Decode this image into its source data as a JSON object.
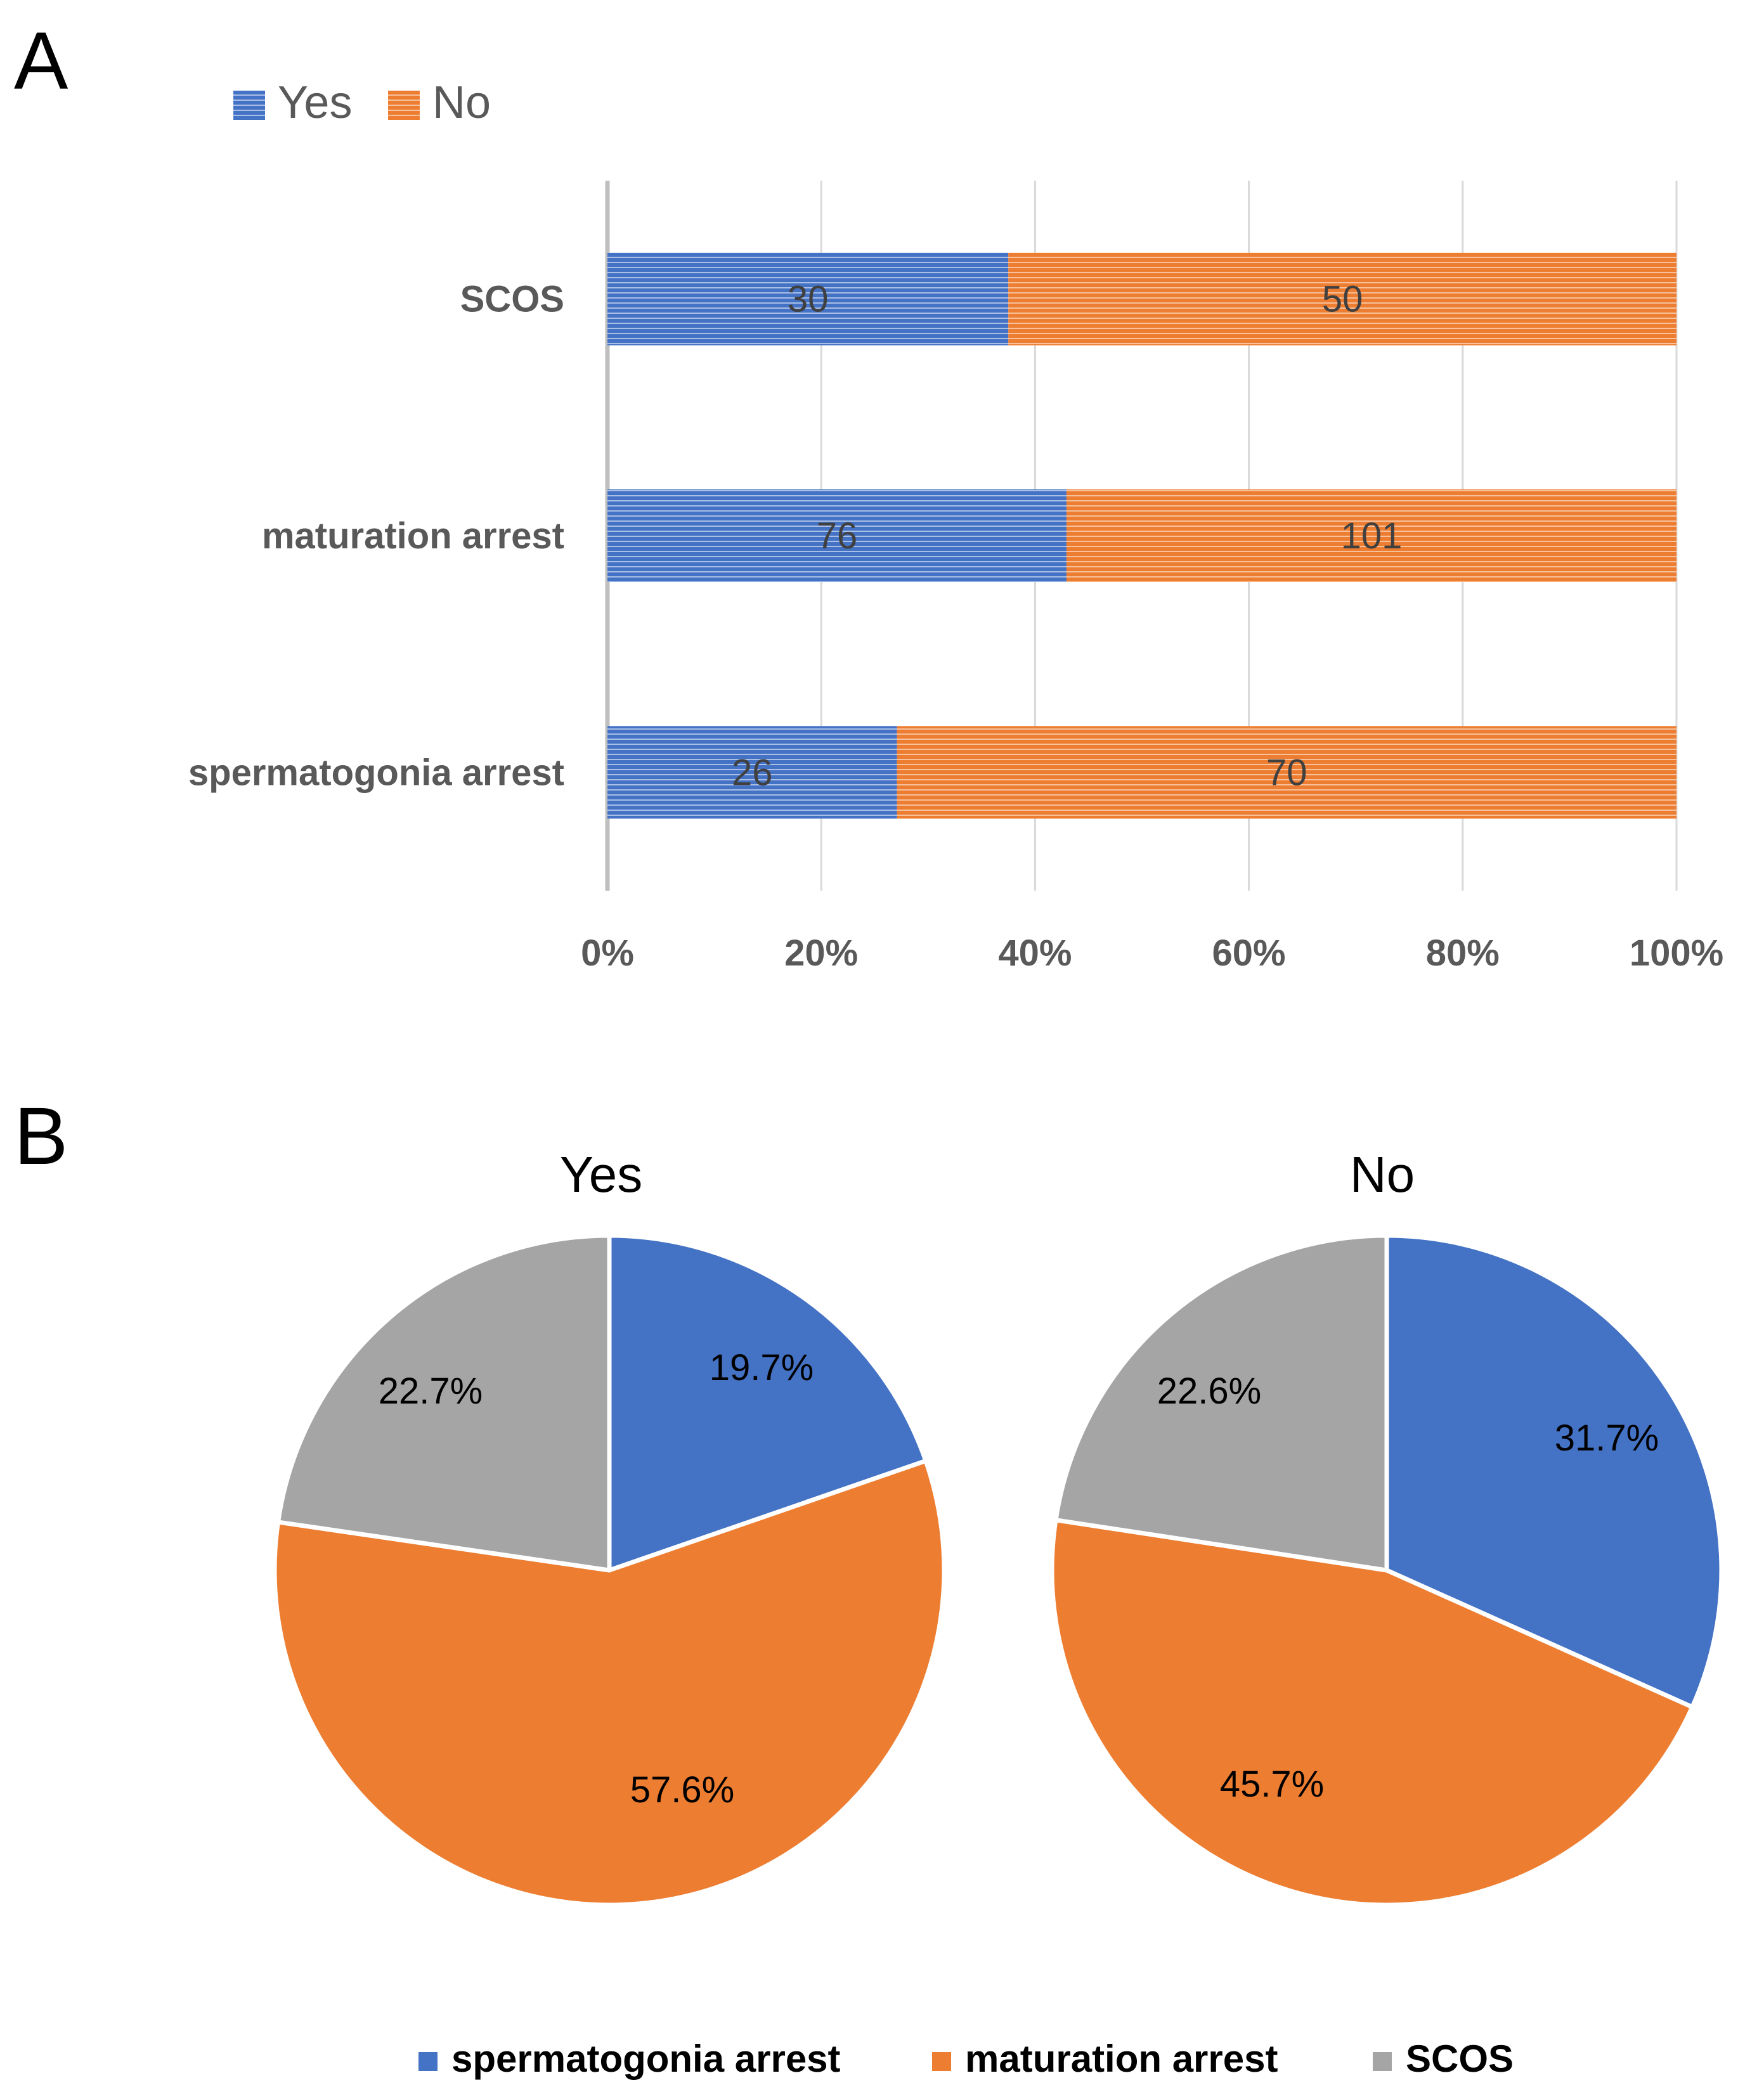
{
  "panels": {
    "a": "A",
    "b": "B"
  },
  "colors": {
    "yes": "#4472C4",
    "no": "#ED7D31",
    "scos": "#A5A5A5",
    "grid": "#D9D9D9",
    "axis": "#BFBFBF"
  },
  "chart_data": [
    {
      "type": "bar",
      "orientation": "horizontal",
      "stacked": "100%",
      "categories": [
        "SCOS",
        "maturation arrest",
        "spermatogonia arrest"
      ],
      "series": [
        {
          "name": "Yes",
          "color": "#4472C4",
          "values": [
            30,
            76,
            26
          ]
        },
        {
          "name": "No",
          "color": "#ED7D31",
          "values": [
            50,
            101,
            70
          ]
        }
      ],
      "x_ticks": [
        "0%",
        "20%",
        "40%",
        "60%",
        "80%",
        "100%"
      ],
      "xlim": [
        0,
        100
      ],
      "grid": true,
      "legend_position": "top-left"
    },
    {
      "type": "pie",
      "title": "Yes",
      "labels": [
        "spermatogonia arrest",
        "maturation arrest",
        "SCOS"
      ],
      "values": [
        19.7,
        57.6,
        22.7
      ],
      "value_labels": [
        "19.7%",
        "57.6%",
        "22.7%"
      ],
      "colors": [
        "#4472C4",
        "#ED7D31",
        "#A5A5A5"
      ]
    },
    {
      "type": "pie",
      "title": "No",
      "labels": [
        "spermatogonia arrest",
        "maturation arrest",
        "SCOS"
      ],
      "values": [
        31.7,
        45.7,
        22.6
      ],
      "value_labels": [
        "31.7%",
        "45.7%",
        "22.6%"
      ],
      "colors": [
        "#4472C4",
        "#ED7D31",
        "#A5A5A5"
      ]
    }
  ],
  "pie_legend": [
    "spermatogonia arrest",
    "maturation arrest",
    "SCOS"
  ]
}
